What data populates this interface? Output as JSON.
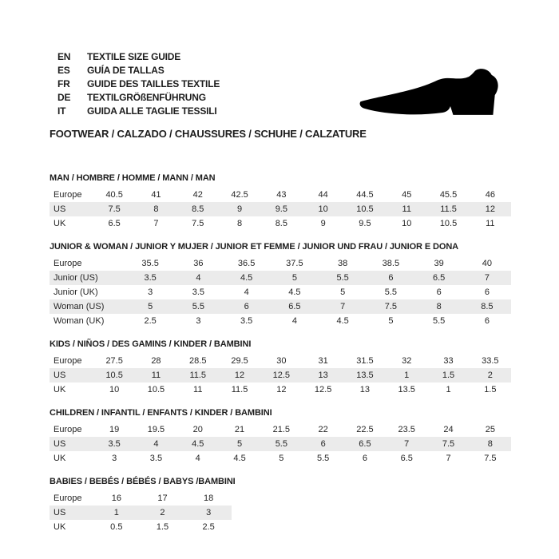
{
  "colors": {
    "header_row_bg": "#c6c6c6",
    "zebra_row_bg": "#ebebeb",
    "ink": "#1d1d1d",
    "shoe_fill": "#000000"
  },
  "header": {
    "languages": [
      {
        "code": "EN",
        "label": "TEXTILE SIZE GUIDE"
      },
      {
        "code": "ES",
        "label": "GUÍA DE TALLAS"
      },
      {
        "code": "FR",
        "label": "GUIDE DES TAILLES TEXTILE"
      },
      {
        "code": "DE",
        "label": "TEXTILGRÖßENFÜHRUNG"
      },
      {
        "code": "IT",
        "label": "GUIDA ALLE TAGLIE TESSILI"
      }
    ],
    "category_line": "FOOTWEAR / CALZADO / CHAUSSURES / SCHUHE / CALZATURE",
    "shoe_icon": "dress-shoe-silhouette"
  },
  "size_tables": [
    {
      "id": "man",
      "title": "MAN / HOMBRE / HOMME / MANN / MAN",
      "rows": [
        {
          "label": "Europe",
          "values": [
            "40.5",
            "41",
            "42",
            "42.5",
            "43",
            "44",
            "44.5",
            "45",
            "45.5",
            "46"
          ]
        },
        {
          "label": "US",
          "values": [
            "7.5",
            "8",
            "8.5",
            "9",
            "9.5",
            "10",
            "10.5",
            "11",
            "11.5",
            "12"
          ]
        },
        {
          "label": "UK",
          "values": [
            "6.5",
            "7",
            "7.5",
            "8",
            "8.5",
            "9",
            "9.5",
            "10",
            "10.5",
            "11"
          ]
        }
      ]
    },
    {
      "id": "junior-woman",
      "title": "JUNIOR & WOMAN / JUNIOR Y MUJER / JUNIOR ET FEMME / JUNIOR UND FRAU / JUNIOR E DONA",
      "rows": [
        {
          "label": "Europe",
          "values": [
            "35.5",
            "36",
            "36.5",
            "37.5",
            "38",
            "38.5",
            "39",
            "40"
          ]
        },
        {
          "label": "Junior (US)",
          "values": [
            "3.5",
            "4",
            "4.5",
            "5",
            "5.5",
            "6",
            "6.5",
            "7"
          ]
        },
        {
          "label": "Junior (UK)",
          "values": [
            "3",
            "3.5",
            "4",
            "4.5",
            "5",
            "5.5",
            "6",
            "6"
          ]
        },
        {
          "label": "Woman (US)",
          "values": [
            "5",
            "5.5",
            "6",
            "6.5",
            "7",
            "7.5",
            "8",
            "8.5"
          ]
        },
        {
          "label": "Woman (UK)",
          "values": [
            "2.5",
            "3",
            "3.5",
            "4",
            "4.5",
            "5",
            "5.5",
            "6"
          ]
        }
      ]
    },
    {
      "id": "kids",
      "title": "KIDS / NIÑOS / DES GAMINS / KINDER / BAMBINI",
      "rows": [
        {
          "label": "Europe",
          "values": [
            "27.5",
            "28",
            "28.5",
            "29.5",
            "30",
            "31",
            "31.5",
            "32",
            "33",
            "33.5"
          ]
        },
        {
          "label": "US",
          "values": [
            "10.5",
            "11",
            "11.5",
            "12",
            "12.5",
            "13",
            "13.5",
            "1",
            "1.5",
            "2"
          ]
        },
        {
          "label": "UK",
          "values": [
            "10",
            "10.5",
            "11",
            "11.5",
            "12",
            "12.5",
            "13",
            "13.5",
            "1",
            "1.5"
          ]
        }
      ]
    },
    {
      "id": "children",
      "title": "CHILDREN / INFANTIL / ENFANTS / KINDER / BAMBINI",
      "rows": [
        {
          "label": "Europe",
          "values": [
            "19",
            "19.5",
            "20",
            "21",
            "21.5",
            "22",
            "22.5",
            "23.5",
            "24",
            "25"
          ]
        },
        {
          "label": "US",
          "values": [
            "3.5",
            "4",
            "4.5",
            "5",
            "5.5",
            "6",
            "6.5",
            "7",
            "7.5",
            "8"
          ]
        },
        {
          "label": "UK",
          "values": [
            "3",
            "3.5",
            "4",
            "4.5",
            "5",
            "5.5",
            "6",
            "6.5",
            "7",
            "7.5"
          ]
        }
      ]
    },
    {
      "id": "babies",
      "title": "BABIES  / BEBÉS / BÉBÉS / BABYS /BAMBINI",
      "rows": [
        {
          "label": "Europe",
          "values": [
            "16",
            "17",
            "18"
          ]
        },
        {
          "label": "US",
          "values": [
            "1",
            "2",
            "3"
          ]
        },
        {
          "label": "UK",
          "values": [
            "0.5",
            "1.5",
            "2.5"
          ]
        }
      ]
    }
  ]
}
